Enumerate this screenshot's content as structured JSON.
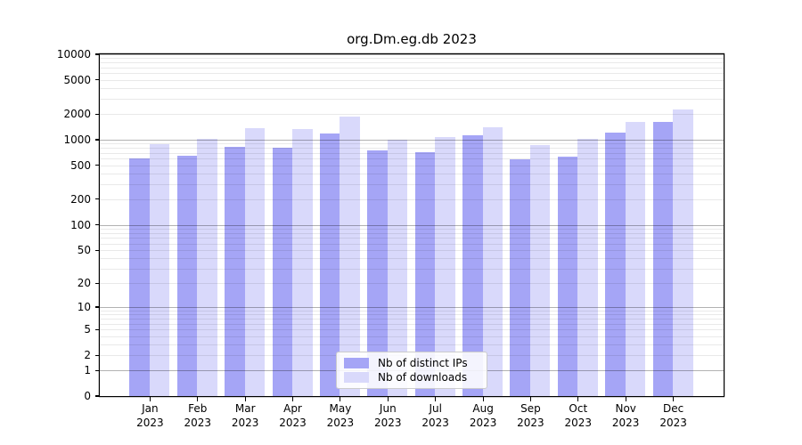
{
  "title": "org.Dm.eg.db 2023",
  "legend": [
    {
      "label": "Nb of distinct IPs"
    },
    {
      "label": "Nb of downloads"
    }
  ],
  "colors": {
    "distinct_ips_bar": "#a5a5f6",
    "downloads_bar": "#d9d9fb",
    "grid_major": "#b3b3b3",
    "grid_minor": "#e9e9e9",
    "axis": "#000000",
    "legend_border": "#cccccc"
  },
  "chart_data": {
    "type": "bar",
    "title": "org.Dm.eg.db 2023",
    "categories": [
      "Jan",
      "Feb",
      "Mar",
      "Apr",
      "May",
      "Jun",
      "Jul",
      "Aug",
      "Sep",
      "Oct",
      "Nov",
      "Dec"
    ],
    "year": "2023",
    "series": [
      {
        "name": "Nb of distinct IPs",
        "color": "#a5a5f6",
        "values": [
          605,
          650,
          835,
          815,
          1170,
          745,
          720,
          1120,
          595,
          635,
          1205,
          1620
        ]
      },
      {
        "name": "Nb of downloads",
        "color": "#d9d9fb",
        "values": [
          895,
          1030,
          1380,
          1350,
          1845,
          1010,
          1075,
          1415,
          870,
          1020,
          1610,
          2250
        ]
      }
    ],
    "xlabel": "",
    "ylabel": "",
    "yscale": "log1p",
    "ylim": [
      0,
      10000
    ],
    "yticks": [
      0,
      1,
      2,
      5,
      10,
      20,
      50,
      100,
      200,
      500,
      1000,
      2000,
      5000,
      10000
    ],
    "ytick_labels": [
      "0",
      "1",
      "2",
      "5",
      "10",
      "20",
      "50",
      "100",
      "200",
      "500",
      "1000",
      "2000",
      "5000",
      "10000"
    ],
    "grid": true,
    "legend_position": "lower center"
  }
}
